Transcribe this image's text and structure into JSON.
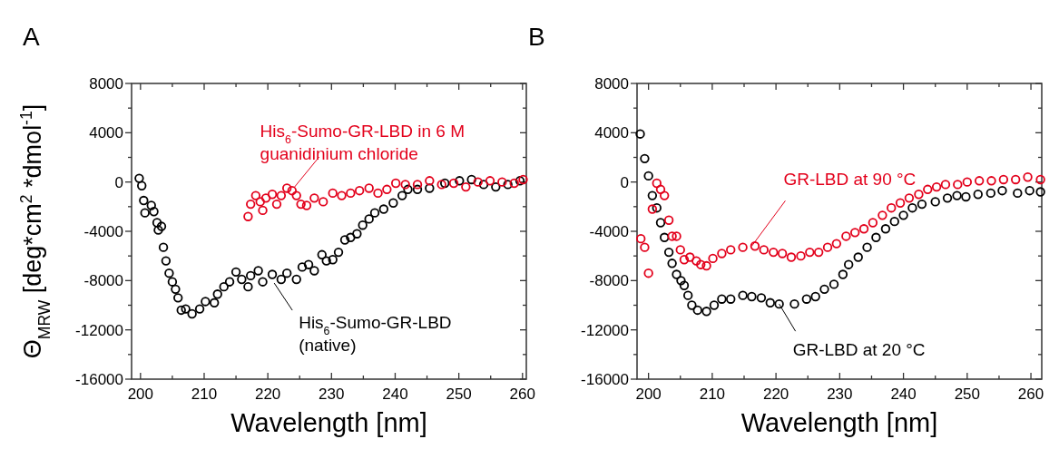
{
  "chart_data": [
    {
      "type": "scatter",
      "title": "A",
      "xlabel": "Wavelength [nm]",
      "ylabel": "Θ$_{MRW}$ [deg*cm$^{2}$ *dmol$^{-1}$]",
      "marker": "circle",
      "grid": false,
      "xlim": [
        198.6,
        260.6
      ],
      "ylim": [
        -16000,
        8000
      ],
      "xticks": [
        200,
        {
          "value": 205,
          "label": null
        },
        210,
        {
          "value": 215,
          "label": null
        },
        220,
        {
          "value": 225,
          "label": null
        },
        230,
        {
          "value": 235,
          "label": null
        },
        240,
        {
          "value": 245,
          "label": null
        },
        250,
        {
          "value": 255,
          "label": null
        },
        260
      ],
      "yticks": [
        -16000,
        {
          "value": -14000,
          "label": null
        },
        -12000,
        {
          "value": -10000,
          "label": null
        },
        -8000,
        {
          "value": -6000,
          "label": null
        },
        -4000,
        {
          "value": -2000,
          "label": null
        },
        0,
        {
          "value": 2000,
          "label": null
        },
        4000,
        {
          "value": 6000,
          "label": null
        },
        8000
      ],
      "series": [
        {
          "color": "#000000",
          "x": [
            199.8,
            200.2,
            200.5,
            200.7,
            201.7,
            202.1,
            202.6,
            202.8,
            203.3,
            203.6,
            204.0,
            204.5,
            205.0,
            205.5,
            205.9,
            206.4,
            207.1,
            208.1,
            209.3,
            210.2,
            211.6,
            212.1,
            213.1,
            214.0,
            215.0,
            215.9,
            216.9,
            217.3,
            218.5,
            219.2,
            220.7,
            222.1,
            223.0,
            224.5,
            225.4,
            226.4,
            227.3,
            228.5,
            229.2,
            230.2,
            231.1,
            232.1,
            233.0,
            234.0,
            234.9,
            235.9,
            236.8,
            238.2,
            239.7,
            241.1,
            242.0,
            243.5,
            245.4,
            247.8,
            250.1,
            252.0,
            253.9,
            255.8,
            257.7,
            259.6
          ],
          "values": [
            300,
            -300,
            -1500,
            -2500,
            -1900,
            -2400,
            -3300,
            -3900,
            -3600,
            -5300,
            -6400,
            -7400,
            -8100,
            -8700,
            -9400,
            -10400,
            -10300,
            -10700,
            -10300,
            -9700,
            -9800,
            -9100,
            -8500,
            -8100,
            -7300,
            -7900,
            -8500,
            -7600,
            -7200,
            -8100,
            -7500,
            -7900,
            -7400,
            -7900,
            -6900,
            -6700,
            -7200,
            -5900,
            -6400,
            -6300,
            -5700,
            -4700,
            -4500,
            -4200,
            -3500,
            -3000,
            -2500,
            -2200,
            -1700,
            -1100,
            -600,
            -600,
            -500,
            -100,
            100,
            200,
            -200,
            -400,
            -200,
            100
          ]
        },
        {
          "color": "#e3001b",
          "x": [
            216.9,
            217.3,
            218.1,
            218.8,
            219.2,
            219.7,
            220.7,
            221.4,
            222.1,
            223.0,
            223.8,
            224.5,
            225.2,
            226.1,
            227.3,
            228.7,
            230.2,
            231.6,
            233.0,
            234.4,
            235.9,
            237.3,
            238.7,
            240.1,
            241.6,
            243.5,
            245.4,
            247.3,
            249.2,
            251.1,
            253.0,
            254.9,
            256.8,
            258.7,
            260.1
          ],
          "values": [
            -2800,
            -1800,
            -1100,
            -1600,
            -2300,
            -1300,
            -1000,
            -1800,
            -1100,
            -500,
            -700,
            -1100,
            -1800,
            -1900,
            -1300,
            -1600,
            -900,
            -1100,
            -900,
            -700,
            -500,
            -900,
            -600,
            -100,
            -200,
            -200,
            100,
            -200,
            -100,
            -400,
            0,
            100,
            0,
            -100,
            200
          ]
        }
      ],
      "annotations": [
        {
          "text": "His$_{6}$-Sumo-GR-LBD in 6 M guanidinium chloride",
          "x": 224.2,
          "y": -400
        },
        {
          "text": "His$_{6}$-Sumo-GR-LBD (native)",
          "x": 221,
          "y": -8200
        }
      ]
    },
    {
      "type": "scatter",
      "title": "B",
      "xlabel": "Wavelength [nm]",
      "marker": "circle",
      "grid": false,
      "xlim": [
        198.2,
        261.7
      ],
      "ylim": [
        -16000,
        8000
      ],
      "xticks": [
        200,
        {
          "value": 205,
          "label": null
        },
        210,
        {
          "value": 215,
          "label": null
        },
        220,
        {
          "value": 225,
          "label": null
        },
        230,
        {
          "value": 235,
          "label": null
        },
        240,
        {
          "value": 245,
          "label": null
        },
        250,
        {
          "value": 255,
          "label": null
        },
        260
      ],
      "yticks": [
        -16000,
        {
          "value": -14000,
          "label": null
        },
        -12000,
        {
          "value": -10000,
          "label": null
        },
        -8000,
        {
          "value": -6000,
          "label": null
        },
        -4000,
        {
          "value": -2000,
          "label": null
        },
        0,
        {
          "value": 2000,
          "label": null
        },
        4000,
        {
          "value": 6000,
          "label": null
        },
        8000
      ],
      "series": [
        {
          "color": "#000000",
          "x": [
            198.7,
            199.4,
            200.0,
            200.6,
            201.3,
            201.9,
            202.5,
            203.2,
            203.7,
            204.4,
            205.1,
            205.6,
            206.2,
            206.8,
            207.7,
            209.1,
            210.3,
            211.5,
            212.9,
            214.8,
            216.2,
            217.7,
            219.1,
            220.5,
            222.9,
            224.8,
            226.2,
            227.6,
            229.1,
            230.5,
            231.4,
            232.9,
            234.3,
            235.7,
            237.2,
            238.6,
            240.0,
            241.4,
            242.9,
            245.0,
            246.9,
            248.4,
            249.8,
            251.7,
            253.7,
            255.5,
            257.9,
            259.8,
            261.5
          ],
          "values": [
            3900,
            1900,
            500,
            -1100,
            -2100,
            -3300,
            -4500,
            -5700,
            -6600,
            -7500,
            -8000,
            -8400,
            -9200,
            -10000,
            -10400,
            -10500,
            -10000,
            -9500,
            -9500,
            -9200,
            -9300,
            -9400,
            -9800,
            -9900,
            -9900,
            -9500,
            -9300,
            -8700,
            -8300,
            -7500,
            -6700,
            -6100,
            -5300,
            -4500,
            -3800,
            -3200,
            -2700,
            -2100,
            -1800,
            -1600,
            -1300,
            -1100,
            -1200,
            -1000,
            -900,
            -700,
            -900,
            -700,
            -800
          ]
        },
        {
          "color": "#e3001b",
          "x": [
            198.8,
            199.4,
            200.0,
            200.6,
            201.3,
            201.9,
            202.5,
            203.2,
            203.7,
            204.4,
            205.0,
            205.6,
            206.5,
            207.5,
            208.2,
            209.1,
            210.1,
            211.5,
            212.9,
            214.8,
            216.7,
            218.1,
            219.6,
            221.0,
            222.4,
            223.9,
            225.3,
            226.7,
            228.1,
            229.5,
            231.0,
            232.4,
            233.8,
            235.2,
            236.7,
            238.1,
            239.5,
            240.9,
            242.4,
            243.8,
            245.2,
            246.6,
            248.5,
            250.0,
            251.9,
            253.8,
            255.7,
            257.6,
            259.5,
            261.5
          ],
          "values": [
            -4600,
            -5300,
            -7400,
            -2200,
            -100,
            -600,
            -1100,
            -3100,
            -4400,
            -4400,
            -5500,
            -6300,
            -6100,
            -6400,
            -6700,
            -6800,
            -6200,
            -5800,
            -5500,
            -5300,
            -5200,
            -5500,
            -5700,
            -5800,
            -6100,
            -6000,
            -5700,
            -5700,
            -5300,
            -5000,
            -4400,
            -4100,
            -3800,
            -3300,
            -2700,
            -2100,
            -1700,
            -1300,
            -1000,
            -600,
            -400,
            -200,
            -200,
            0,
            100,
            100,
            200,
            200,
            400,
            200
          ]
        }
      ],
      "annotations": [
        {
          "text": "GR-LBD at 90 °C",
          "x": 216.2,
          "y": -5200
        },
        {
          "text": "GR-LBD at 20 °C",
          "x": 220.5,
          "y": -9900
        }
      ]
    }
  ]
}
